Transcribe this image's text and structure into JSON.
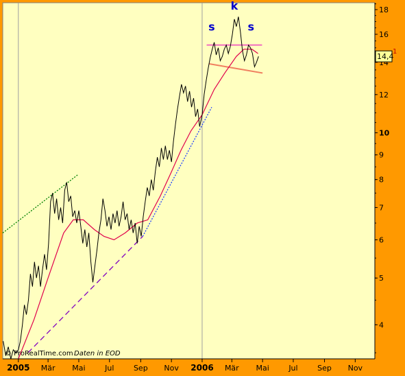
{
  "colors": {
    "frame": "#ff9900",
    "plot_bg": "#ffffc0",
    "price_line": "#000000",
    "moving_average": "#e0004c",
    "grid_vertical": "#a0a0a0",
    "shoulders_neckline_top": "#f06cc0",
    "neckline_bottom": "#f08060",
    "trend_blue": "#1f3fff",
    "trend_purple": "#8000c0",
    "trend_green": "#008000",
    "pattern_labels": "#0000cc",
    "last_value_box": "#ffff99"
  },
  "chart_data": {
    "type": "line",
    "y_scale": "log",
    "ylim": [
      3.4,
      18.6
    ],
    "y_ticks": [
      {
        "value": 4,
        "label": "4"
      },
      {
        "value": 5,
        "label": "5"
      },
      {
        "value": 6,
        "label": "6"
      },
      {
        "value": 7,
        "label": "7"
      },
      {
        "value": 8,
        "label": "8"
      },
      {
        "value": 9,
        "label": "9"
      },
      {
        "value": 10,
        "label": "10",
        "bold": true
      },
      {
        "value": 12,
        "label": "12"
      },
      {
        "value": 14,
        "label": "14"
      },
      {
        "value": 16,
        "label": "16"
      },
      {
        "value": 18,
        "label": "18"
      }
    ],
    "x_range": [
      "2004-12-01",
      "2006-12-10"
    ],
    "x_ticks": [
      {
        "date": "2005-01-01",
        "label": "2005",
        "bold": true,
        "gridline": true
      },
      {
        "date": "2005-03-01",
        "label": "Mär"
      },
      {
        "date": "2005-05-01",
        "label": "Mai"
      },
      {
        "date": "2005-07-01",
        "label": "Jul"
      },
      {
        "date": "2005-09-01",
        "label": "Sep"
      },
      {
        "date": "2005-11-01",
        "label": "Nov"
      },
      {
        "date": "2006-01-01",
        "label": "2006",
        "bold": true,
        "gridline": true
      },
      {
        "date": "2006-03-01",
        "label": "Mär"
      },
      {
        "date": "2006-05-01",
        "label": "Mai"
      },
      {
        "date": "2006-07-01",
        "label": "Jul"
      },
      {
        "date": "2006-09-01",
        "label": "Sep"
      },
      {
        "date": "2006-11-01",
        "label": "Nov"
      }
    ],
    "series": [
      {
        "kind": "price",
        "points": [
          [
            "2004-12-02",
            3.7
          ],
          [
            "2004-12-07",
            3.45
          ],
          [
            "2004-12-12",
            3.6
          ],
          [
            "2004-12-17",
            3.4
          ],
          [
            "2004-12-22",
            3.55
          ],
          [
            "2004-12-27",
            3.5
          ],
          [
            "2005-01-01",
            3.55
          ],
          [
            "2005-01-05",
            3.7
          ],
          [
            "2005-01-09",
            4.0
          ],
          [
            "2005-01-13",
            4.4
          ],
          [
            "2005-01-17",
            4.2
          ],
          [
            "2005-01-21",
            4.5
          ],
          [
            "2005-01-25",
            5.1
          ],
          [
            "2005-01-29",
            4.8
          ],
          [
            "2005-02-02",
            5.4
          ],
          [
            "2005-02-06",
            5.0
          ],
          [
            "2005-02-10",
            5.3
          ],
          [
            "2005-02-14",
            4.8
          ],
          [
            "2005-02-18",
            5.2
          ],
          [
            "2005-02-22",
            5.6
          ],
          [
            "2005-02-26",
            5.2
          ],
          [
            "2005-03-02",
            5.9
          ],
          [
            "2005-03-06",
            7.2
          ],
          [
            "2005-03-10",
            7.5
          ],
          [
            "2005-03-14",
            6.8
          ],
          [
            "2005-03-18",
            7.3
          ],
          [
            "2005-03-22",
            6.6
          ],
          [
            "2005-03-26",
            7.0
          ],
          [
            "2005-03-30",
            6.5
          ],
          [
            "2005-04-03",
            7.6
          ],
          [
            "2005-04-07",
            7.9
          ],
          [
            "2005-04-11",
            7.2
          ],
          [
            "2005-04-15",
            7.4
          ],
          [
            "2005-04-19",
            6.7
          ],
          [
            "2005-04-23",
            6.9
          ],
          [
            "2005-04-27",
            6.5
          ],
          [
            "2005-05-01",
            6.9
          ],
          [
            "2005-05-05",
            6.4
          ],
          [
            "2005-05-09",
            5.9
          ],
          [
            "2005-05-13",
            6.3
          ],
          [
            "2005-05-17",
            5.8
          ],
          [
            "2005-05-21",
            6.2
          ],
          [
            "2005-05-25",
            5.4
          ],
          [
            "2005-05-29",
            4.9
          ],
          [
            "2005-06-02",
            5.3
          ],
          [
            "2005-06-06",
            5.7
          ],
          [
            "2005-06-10",
            6.2
          ],
          [
            "2005-06-14",
            6.6
          ],
          [
            "2005-06-18",
            7.3
          ],
          [
            "2005-06-22",
            6.9
          ],
          [
            "2005-06-26",
            6.4
          ],
          [
            "2005-06-30",
            6.7
          ],
          [
            "2005-07-04",
            6.3
          ],
          [
            "2005-07-08",
            6.8
          ],
          [
            "2005-07-12",
            6.5
          ],
          [
            "2005-07-16",
            6.9
          ],
          [
            "2005-07-20",
            6.4
          ],
          [
            "2005-07-24",
            6.7
          ],
          [
            "2005-07-28",
            7.2
          ],
          [
            "2005-08-01",
            6.6
          ],
          [
            "2005-08-05",
            6.8
          ],
          [
            "2005-08-09",
            6.3
          ],
          [
            "2005-08-13",
            6.6
          ],
          [
            "2005-08-17",
            6.2
          ],
          [
            "2005-08-21",
            6.5
          ],
          [
            "2005-08-25",
            5.9
          ],
          [
            "2005-08-29",
            6.4
          ],
          [
            "2005-09-02",
            6.1
          ],
          [
            "2005-09-06",
            6.7
          ],
          [
            "2005-09-10",
            7.2
          ],
          [
            "2005-09-14",
            7.7
          ],
          [
            "2005-09-18",
            7.4
          ],
          [
            "2005-09-22",
            8.0
          ],
          [
            "2005-09-26",
            7.6
          ],
          [
            "2005-09-30",
            8.3
          ],
          [
            "2005-10-04",
            8.9
          ],
          [
            "2005-10-08",
            8.5
          ],
          [
            "2005-10-12",
            9.3
          ],
          [
            "2005-10-16",
            8.8
          ],
          [
            "2005-10-20",
            9.4
          ],
          [
            "2005-10-24",
            8.8
          ],
          [
            "2005-10-28",
            9.2
          ],
          [
            "2005-11-01",
            8.7
          ],
          [
            "2005-11-05",
            9.6
          ],
          [
            "2005-11-09",
            10.4
          ],
          [
            "2005-11-13",
            11.2
          ],
          [
            "2005-11-17",
            11.9
          ],
          [
            "2005-11-21",
            12.6
          ],
          [
            "2005-11-25",
            12.1
          ],
          [
            "2005-11-29",
            12.5
          ],
          [
            "2005-12-03",
            11.6
          ],
          [
            "2005-12-07",
            12.2
          ],
          [
            "2005-12-11",
            11.3
          ],
          [
            "2005-12-15",
            11.8
          ],
          [
            "2005-12-19",
            10.8
          ],
          [
            "2005-12-23",
            11.2
          ],
          [
            "2005-12-27",
            10.3
          ],
          [
            "2006-01-01",
            10.9
          ],
          [
            "2006-01-05",
            12.0
          ],
          [
            "2006-01-09",
            12.8
          ],
          [
            "2006-01-13",
            13.6
          ],
          [
            "2006-01-17",
            14.3
          ],
          [
            "2006-01-21",
            14.9
          ],
          [
            "2006-01-25",
            15.4
          ],
          [
            "2006-01-29",
            14.5
          ],
          [
            "2006-02-02",
            15.0
          ],
          [
            "2006-02-06",
            14.1
          ],
          [
            "2006-02-10",
            14.4
          ],
          [
            "2006-02-14",
            14.9
          ],
          [
            "2006-02-18",
            15.2
          ],
          [
            "2006-02-22",
            14.6
          ],
          [
            "2006-02-26",
            15.1
          ],
          [
            "2006-03-02",
            16.0
          ],
          [
            "2006-03-06",
            17.2
          ],
          [
            "2006-03-10",
            16.6
          ],
          [
            "2006-03-14",
            17.4
          ],
          [
            "2006-03-18",
            16.2
          ],
          [
            "2006-03-22",
            14.8
          ],
          [
            "2006-03-26",
            14.1
          ],
          [
            "2006-03-30",
            14.5
          ],
          [
            "2006-04-03",
            15.2
          ],
          [
            "2006-04-07",
            15.0
          ],
          [
            "2006-04-11",
            14.6
          ],
          [
            "2006-04-15",
            13.7
          ],
          [
            "2006-04-19",
            14.0
          ],
          [
            "2006-04-23",
            14.4
          ]
        ]
      },
      {
        "kind": "moving_average",
        "points": [
          [
            "2005-01-01",
            3.4
          ],
          [
            "2005-02-01",
            4.1
          ],
          [
            "2005-03-01",
            5.0
          ],
          [
            "2005-04-01",
            6.2
          ],
          [
            "2005-04-20",
            6.6
          ],
          [
            "2005-05-10",
            6.6
          ],
          [
            "2005-06-01",
            6.3
          ],
          [
            "2005-06-20",
            6.1
          ],
          [
            "2005-07-10",
            6.0
          ],
          [
            "2005-08-01",
            6.2
          ],
          [
            "2005-08-25",
            6.5
          ],
          [
            "2005-09-15",
            6.6
          ],
          [
            "2005-10-10",
            7.4
          ],
          [
            "2005-11-01",
            8.3
          ],
          [
            "2005-11-20",
            9.2
          ],
          [
            "2005-12-10",
            10.1
          ],
          [
            "2006-01-01",
            10.9
          ],
          [
            "2006-01-25",
            12.3
          ],
          [
            "2006-02-15",
            13.3
          ],
          [
            "2006-03-10",
            14.4
          ],
          [
            "2006-03-25",
            14.9
          ],
          [
            "2006-04-10",
            14.9
          ],
          [
            "2006-04-22",
            14.6
          ]
        ]
      }
    ],
    "trendlines": [
      {
        "color_key": "trend_green",
        "style": "dotted",
        "from": [
          "2004-12-01",
          6.2
        ],
        "to": [
          "2005-04-30",
          8.2
        ]
      },
      {
        "color_key": "trend_purple",
        "style": "dashed",
        "from": [
          "2005-01-20",
          3.5
        ],
        "to": [
          "2005-09-05",
          6.1
        ]
      },
      {
        "color_key": "trend_blue",
        "style": "dotted",
        "from": [
          "2005-09-05",
          6.1
        ],
        "to": [
          "2006-01-20",
          11.3
        ]
      },
      {
        "color_key": "shoulders_neckline_top",
        "style": "solid",
        "from": [
          "2006-01-10",
          15.2
        ],
        "to": [
          "2006-04-30",
          15.2
        ]
      },
      {
        "color_key": "neckline_bottom",
        "style": "solid",
        "from": [
          "2006-01-15",
          13.9
        ],
        "to": [
          "2006-05-01",
          13.3
        ]
      }
    ],
    "annotations": [
      {
        "text": "s",
        "date": "2006-01-20",
        "value": 16.3
      },
      {
        "text": "k",
        "date": "2006-03-06",
        "value": 18.0
      },
      {
        "text": "s",
        "date": "2006-04-08",
        "value": 16.3
      }
    ],
    "last_value_label": "14,4",
    "last_value_suffix": "1",
    "last_value": 14.4,
    "watermark": "© ProRealTime.com",
    "source_note": "Daten in EOD"
  }
}
